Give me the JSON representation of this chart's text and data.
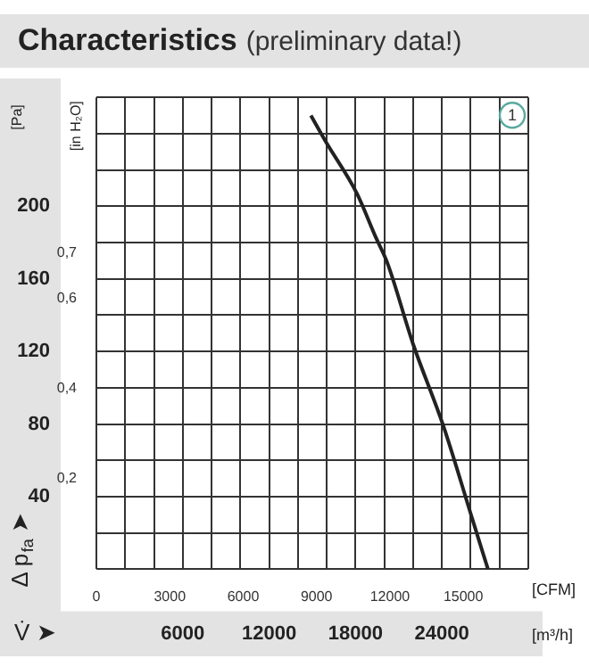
{
  "chart_data": {
    "type": "line",
    "title": "Characteristics",
    "subtitle": "(preliminary data!)",
    "ylabel": "[Pa]",
    "y2label": "[in H₂O]",
    "xlabel": "[m³/h]",
    "x2label": "[CFM]",
    "annotations": [
      "Δ p$_{fa}$ ➤",
      "V̇ ➤",
      "1"
    ],
    "xlim": [
      0,
      30000
    ],
    "xticks": [
      {
        "value": 0,
        "label": null
      },
      {
        "value": 2000,
        "label": null
      },
      {
        "value": 4000,
        "label": null
      },
      6000,
      {
        "value": 8000,
        "label": null
      },
      {
        "value": 10000,
        "label": null
      },
      12000,
      {
        "value": 14000,
        "label": null
      },
      {
        "value": 16000,
        "label": null
      },
      18000,
      {
        "value": 20000,
        "label": null
      },
      {
        "value": 22000,
        "label": null
      },
      24000,
      {
        "value": 26000,
        "label": null
      },
      {
        "value": 28000,
        "label": null
      },
      {
        "value": 30000,
        "label": null
      }
    ],
    "x2lim": [
      0,
      17657
    ],
    "x2ticks": [
      0,
      3000,
      6000,
      9000,
      12000,
      15000
    ],
    "ylim": [
      0,
      260
    ],
    "yticks": [
      {
        "value": 0,
        "label": null
      },
      {
        "value": 20,
        "label": null
      },
      40,
      {
        "value": 60,
        "label": null
      },
      80,
      {
        "value": 100,
        "label": null
      },
      120,
      {
        "value": 140,
        "label": null
      },
      160,
      {
        "value": 180,
        "label": null
      },
      200,
      {
        "value": 220,
        "label": null
      },
      {
        "value": 240,
        "label": null
      },
      {
        "value": 260,
        "label": null
      }
    ],
    "y2lim": [
      0,
      1.044
    ],
    "y2ticks": [
      {
        "value": 0.2,
        "label": "0,2"
      },
      {
        "value": 0.4,
        "label": "0,4"
      },
      {
        "value": 0.6,
        "label": "0,6"
      },
      {
        "value": 0.7,
        "label": "0,7"
      }
    ],
    "grid": true,
    "legend": false,
    "marker": "none",
    "line_style": "solid",
    "x": [
      14900,
      15900,
      18100,
      19400,
      20200,
      22000,
      24100,
      26100,
      27200
    ],
    "series": [
      {
        "color": "#222222",
        "values": [
          250,
          236,
          207,
          183,
          169,
          124,
          79,
          28,
          0
        ]
      }
    ]
  }
}
